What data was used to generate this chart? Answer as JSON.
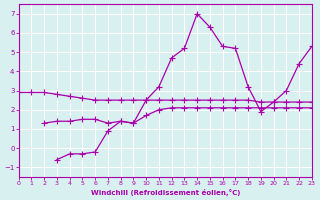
{
  "xlabel": "Windchill (Refroidissement éolien,°C)",
  "background_color": "#d8f0f0",
  "grid_color": "#ffffff",
  "line_color": "#aa00aa",
  "xlim": [
    0,
    23
  ],
  "ylim": [
    -1.5,
    7.5
  ],
  "xticks": [
    0,
    1,
    2,
    3,
    4,
    5,
    6,
    7,
    8,
    9,
    10,
    11,
    12,
    13,
    14,
    15,
    16,
    17,
    18,
    19,
    20,
    21,
    22,
    23
  ],
  "yticks": [
    -1,
    0,
    1,
    2,
    3,
    4,
    5,
    6,
    7
  ],
  "series": [
    {
      "x": [
        0,
        1,
        2,
        3,
        4,
        5,
        6,
        7,
        8,
        9,
        10,
        11,
        12,
        13,
        14,
        15,
        16,
        17,
        18,
        19,
        20,
        21,
        22,
        23
      ],
      "y": [
        2.9,
        2.9,
        2.9,
        2.8,
        2.7,
        2.6,
        2.5,
        2.5,
        2.5,
        2.5,
        2.5,
        2.5,
        2.5,
        2.5,
        2.5,
        2.5,
        2.5,
        2.5,
        2.5,
        2.4,
        2.4,
        2.4,
        2.4,
        2.4
      ]
    },
    {
      "x": [
        2,
        3,
        4,
        5,
        6,
        7,
        8,
        9,
        10,
        11,
        12,
        13,
        14,
        15,
        16,
        17,
        18,
        19,
        20,
        21,
        22,
        23
      ],
      "y": [
        1.3,
        1.4,
        1.4,
        1.5,
        1.5,
        1.3,
        1.4,
        1.3,
        1.7,
        2.0,
        2.1,
        2.1,
        2.1,
        2.1,
        2.1,
        2.1,
        2.1,
        2.1,
        2.1,
        2.1,
        2.1,
        2.1
      ]
    },
    {
      "x": [
        3,
        4,
        5,
        6,
        7,
        8,
        9,
        10,
        11,
        12,
        13,
        14,
        15,
        16,
        17,
        18,
        19,
        20,
        21,
        22,
        23
      ],
      "y": [
        -0.6,
        -0.3,
        -0.3,
        -0.2,
        0.9,
        1.4,
        1.3,
        2.5,
        3.2,
        4.7,
        5.2,
        7.0,
        6.3,
        5.3,
        5.2,
        3.2,
        1.9,
        2.4,
        3.0,
        4.4,
        5.3
      ]
    }
  ]
}
